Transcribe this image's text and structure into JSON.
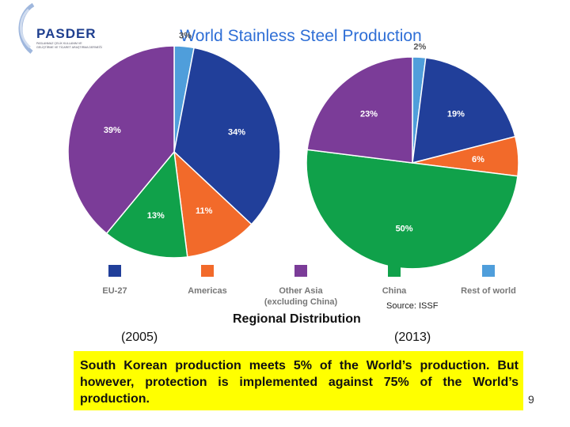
{
  "logo": {
    "name": "PASDER",
    "subtitle_line1": "PASLANMAZ ÇELİK KULLANIM VE",
    "subtitle_line2": "GELİŞTİRME VE TİCARET ARAŞTIRMA DERNEĞİ",
    "color": "#1f3f8f"
  },
  "chart_data": [
    {
      "type": "pie",
      "title": "World Stainless Steel Production",
      "label": "(2005)",
      "slices": [
        {
          "name": "Rest of world",
          "value": 3,
          "label": "3%",
          "color": "#4f9edb"
        },
        {
          "name": "EU-27",
          "value": 34,
          "label": "34%",
          "color": "#213f9a"
        },
        {
          "name": "Americas",
          "value": 11,
          "label": "11%",
          "color": "#f26a2a"
        },
        {
          "name": "China",
          "value": 13,
          "label": "13%",
          "color": "#10a14a"
        },
        {
          "name": "Other Asia (excluding China)",
          "value": 39,
          "label": "39%",
          "color": "#7b3c98"
        }
      ]
    },
    {
      "type": "pie",
      "title": "World Stainless Steel Production",
      "label": "(2013)",
      "slices": [
        {
          "name": "Rest of world",
          "value": 2,
          "label": "2%",
          "color": "#4f9edb"
        },
        {
          "name": "EU-27",
          "value": 19,
          "label": "19%",
          "color": "#213f9a"
        },
        {
          "name": "Americas",
          "value": 6,
          "label": "6%",
          "color": "#f26a2a"
        },
        {
          "name": "China",
          "value": 50,
          "label": "50%",
          "color": "#10a14a"
        },
        {
          "name": "Other Asia (excluding China)",
          "value": 23,
          "label": "23%",
          "color": "#7b3c98"
        }
      ]
    }
  ],
  "legend": [
    {
      "line1": "EU-27",
      "line2": "",
      "color": "#213f9a"
    },
    {
      "line1": "Americas",
      "line2": "",
      "color": "#f26a2a"
    },
    {
      "line1": "Other Asia",
      "line2": "(excluding China)",
      "color": "#7b3c98"
    },
    {
      "line1": "China",
      "line2": "",
      "color": "#10a14a"
    },
    {
      "line1": "Rest of world",
      "line2": "",
      "color": "#4f9edb"
    }
  ],
  "header": {
    "title": "World Stainless Steel Production"
  },
  "source": "Source: ISSF",
  "regional": "Regional Distribution",
  "year_left": "(2005)",
  "year_right": "(2013)",
  "note": "South Korean production meets 5% of the World’s production. But however, protection is implemented against 75% of the World’s production.",
  "page_number": "9"
}
